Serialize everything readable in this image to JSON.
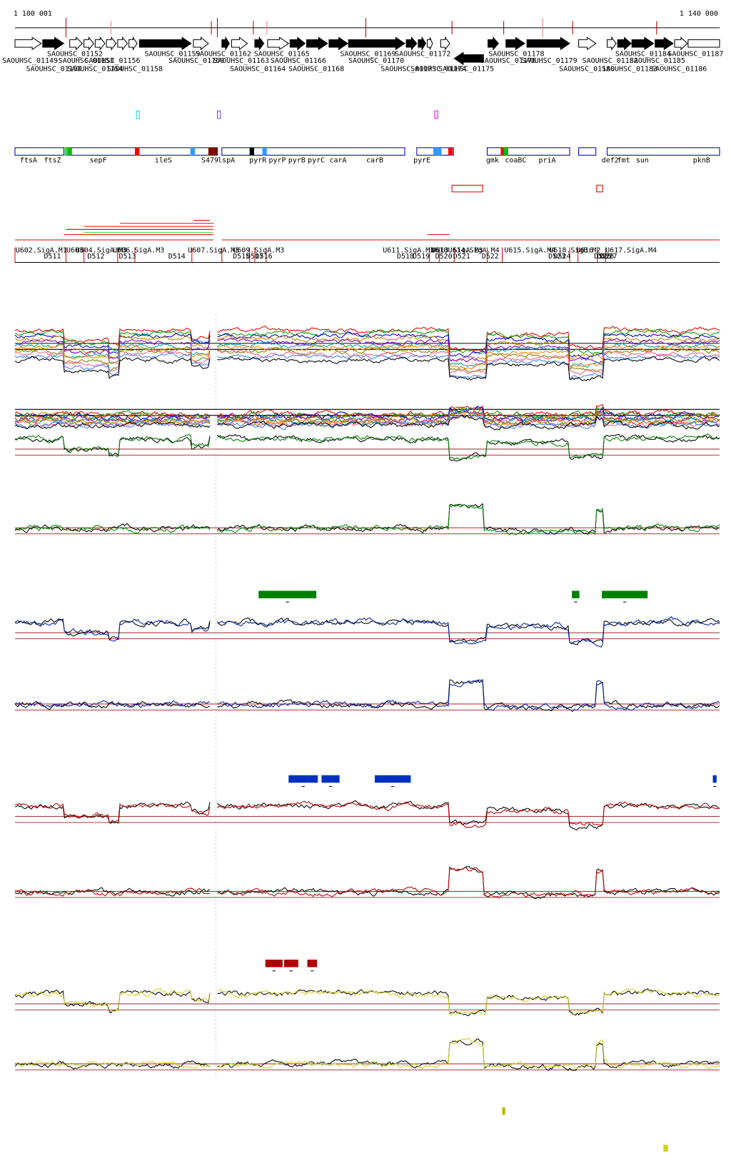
{
  "ruler": {
    "start": "1 100 001",
    "end": "1 140 000"
  },
  "genes_row1": [
    "SAOUHSC_01152",
    "SAOUHSC_01159",
    "SAOUHSC_01162",
    "SAOUHSC_01165",
    "SAOUHSC_01169",
    "SAOUHSC_01172",
    "SAOUHSC_01178",
    "SAOUHSC_01184",
    "SAOUHSC_01187"
  ],
  "genes_row2": [
    "SAOUHSC_01149",
    "SAOUHSC_01153",
    "SAOUHSC_01156",
    "SAOUHSC_01160",
    "SAOUHSC_01163",
    "SAOUHSC_01166",
    "SAOUHSC_01170",
    "SAOUHSC_01176",
    "SAOUHSC_01179",
    "SAOUHSC_01182",
    "SAOUHSC_01185"
  ],
  "genes_row3": [
    "SAOUHSC_01150",
    "SAOUHSC_01154",
    "SAOUHSC_01158",
    "SAOUHSC_01164",
    "SAOUHSC_01168",
    "SAOUHSC_01173",
    "SAOUHSC_01174",
    "SAOUHSC_01175",
    "SAOUHSC_01180",
    "SAOUHSC_01183",
    "SAOUHSC_01186"
  ],
  "operons": [
    "ftsA",
    "ftsZ",
    "sepF",
    "ileS",
    "S479",
    "lspA",
    "pyrR",
    "pyrP",
    "pyrB",
    "pyrC",
    "carA",
    "carB",
    "pyrE",
    "gmk",
    "coaBC",
    "priA",
    "def2",
    "fmt",
    "sun",
    "pknB"
  ],
  "upshifts": [
    "U602.SigA.M1",
    "U603",
    "U604.SigA.M3",
    "U606.SigA.M3",
    "U607.SigA.M3",
    "U609.SigA.M3",
    "U610",
    "U614.SigA.M4",
    "U615.SigA.M4",
    "U616",
    "U617.SigA.M4",
    "U611.SigA.M3",
    "U613.SigA.M3",
    "U618.SigB.M2"
  ],
  "downshifts": [
    "D511",
    "D512",
    "D513",
    "D514",
    "D515",
    "D516",
    "D517",
    "D518",
    "D519",
    "D520",
    "D521",
    "D522",
    "D523",
    "D524",
    "D525",
    "D526",
    "D527"
  ]
}
